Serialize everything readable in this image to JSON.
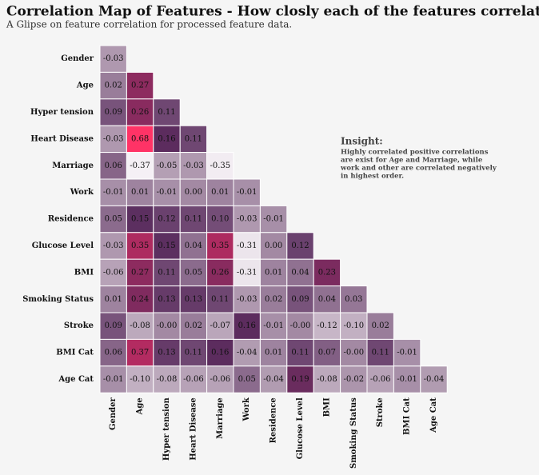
{
  "chart_data": {
    "type": "heatmap",
    "title": "Correlation Map of Features - How closly each of the features correlated?",
    "subtitle": "A Glipse on feature correlation for processed feature data.",
    "annotation": {
      "title": "Insight:",
      "lines": [
        "Highly correlated positive correlations",
        "are exist for Age and Marriage, while",
        "work and other are correlated negatively",
        "in highest order."
      ]
    },
    "rows": [
      "Gender",
      "Age",
      "Hyper tension",
      "Heart Disease",
      "Marriage",
      "Work",
      "Residence",
      "Glucose Level",
      "BMI",
      "Smoking Status",
      "Stroke",
      "BMI Cat",
      "Age Cat"
    ],
    "columns": [
      "Gender",
      "Age",
      "Hyper tension",
      "Heart Disease",
      "Marriage",
      "Work",
      "Residence",
      "Glucose Level",
      "BMI",
      "Smoking Status",
      "Stroke",
      "BMI Cat",
      "Age Cat"
    ],
    "values": [
      [
        -0.03
      ],
      [
        0.02,
        0.27
      ],
      [
        0.09,
        0.26,
        0.11
      ],
      [
        -0.03,
        0.68,
        0.16,
        0.11
      ],
      [
        0.06,
        -0.37,
        -0.05,
        -0.03,
        -0.35
      ],
      [
        -0.01,
        0.01,
        -0.01,
        0,
        0.01,
        -0.01
      ],
      [
        0.05,
        0.15,
        0.12,
        0.11,
        0.1,
        -0.03,
        -0.01
      ],
      [
        -0.03,
        0.35,
        0.15,
        0.04,
        0.35,
        -0.31,
        0,
        0.12
      ],
      [
        -0.06,
        0.27,
        0.11,
        0.05,
        0.26,
        -0.31,
        0.01,
        0.04,
        0.23
      ],
      [
        0.01,
        0.24,
        0.13,
        0.13,
        0.11,
        -0.03,
        0.02,
        0.09,
        0.04,
        0.03
      ],
      [
        0.09,
        -0.08,
        0,
        0.02,
        -0.07,
        0.16,
        -0.01,
        0,
        -0.12,
        -0.1,
        0.02
      ],
      [
        0.06,
        0.37,
        0.13,
        0.11,
        0.16,
        -0.04,
        0.01,
        0.11,
        0.07,
        0,
        0.11,
        -0.01
      ],
      [
        -0.01,
        -0.1,
        -0.08,
        -0.06,
        -0.06,
        0.05,
        -0.04,
        0.19,
        -0.08,
        -0.02,
        -0.06,
        -0.01,
        -0.04
      ]
    ],
    "value_labels": [
      [
        "-0.03"
      ],
      [
        "0.02",
        "0.27"
      ],
      [
        "0.09",
        "0.26",
        "0.11"
      ],
      [
        "-0.03",
        "0.68",
        "0.16",
        "0.11"
      ],
      [
        "0.06",
        "-0.37",
        "-0.05",
        "-0.03",
        "-0.35"
      ],
      [
        "-0.01",
        "0.01",
        "-0.01",
        "0.00",
        "0.01",
        "-0.01"
      ],
      [
        "0.05",
        "0.15",
        "0.12",
        "0.11",
        "0.10",
        "-0.03",
        "-0.01"
      ],
      [
        "-0.03",
        "0.35",
        "0.15",
        "0.04",
        "0.35",
        "-0.31",
        "0.00",
        "0.12"
      ],
      [
        "-0.06",
        "0.27",
        "0.11",
        "0.05",
        "0.26",
        "-0.31",
        "0.01",
        "0.04",
        "0.23"
      ],
      [
        "0.01",
        "0.24",
        "0.13",
        "0.13",
        "0.11",
        "-0.03",
        "0.02",
        "0.09",
        "0.04",
        "0.03"
      ],
      [
        "0.09",
        "-0.08",
        "-0.00",
        "0.02",
        "-0.07",
        "0.16",
        "-0.01",
        "-0.00",
        "-0.12",
        "-0.10",
        "0.02"
      ],
      [
        "0.06",
        "0.37",
        "0.13",
        "0.11",
        "0.16",
        "-0.04",
        "0.01",
        "0.11",
        "0.07",
        "-0.00",
        "0.11",
        "-0.01"
      ],
      [
        "-0.01",
        "-0.10",
        "-0.08",
        "-0.06",
        "-0.06",
        "0.05",
        "-0.04",
        "0.19",
        "-0.08",
        "-0.02",
        "-0.06",
        "-0.01",
        "-0.04"
      ]
    ],
    "colorscale": [
      "#f5f0f5",
      "#dccfdc",
      "#ac95ac",
      "#5a2c5e",
      "#a82a60",
      "#d82f63",
      "#ff3366"
    ]
  }
}
